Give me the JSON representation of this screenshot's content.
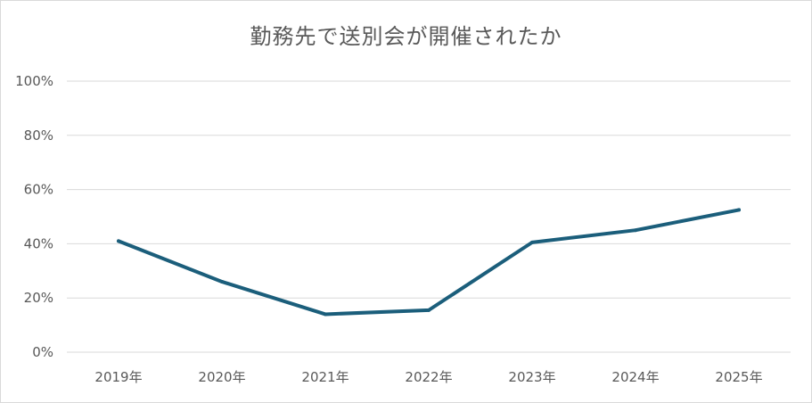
{
  "chart_data": {
    "type": "line",
    "title": "勤務先で送別会が開催されたか",
    "categories": [
      "2019年",
      "2020年",
      "2021年",
      "2022年",
      "2023年",
      "2024年",
      "2025年"
    ],
    "series": [
      {
        "values": [
          41,
          26,
          14,
          15.5,
          40.5,
          45,
          52.5
        ]
      }
    ],
    "ylim": [
      0,
      100
    ],
    "yticks": [
      0,
      20,
      40,
      60,
      80,
      100
    ],
    "ytick_labels": [
      "0%",
      "20%",
      "40%",
      "60%",
      "80%",
      "100%"
    ],
    "grid": true,
    "legend": "none",
    "colors": {
      "line": "#1b5e7b",
      "grid": "#d9d9d9",
      "text": "#595959"
    }
  }
}
